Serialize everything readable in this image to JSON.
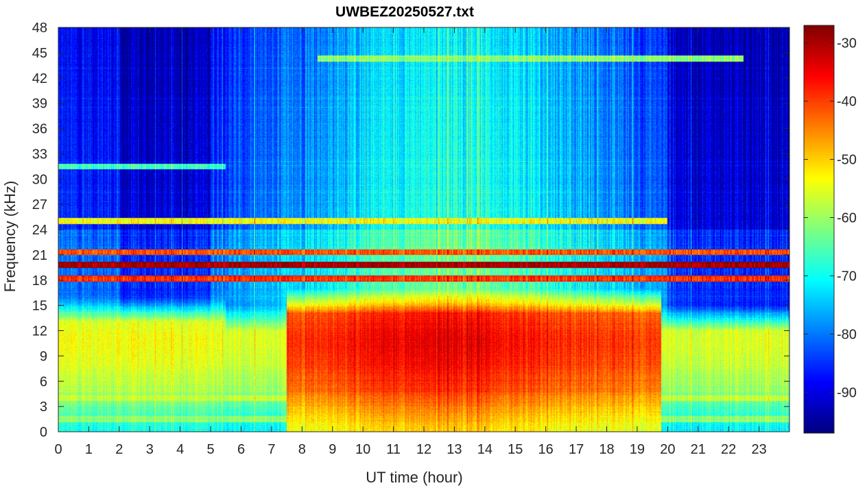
{
  "chart_data": {
    "type": "heatmap",
    "title": "UWBEZ20250527.txt",
    "xlabel": "UT time (hour)",
    "ylabel": "Frequency (kHz)",
    "xlim": [
      0,
      24
    ],
    "ylim": [
      0,
      48
    ],
    "x_ticks": [
      0,
      1,
      2,
      3,
      4,
      5,
      6,
      7,
      8,
      9,
      10,
      11,
      12,
      13,
      14,
      15,
      16,
      17,
      18,
      19,
      20,
      21,
      22,
      23
    ],
    "x_tick_labels": [
      "0",
      "1",
      "2",
      "3",
      "4",
      "5",
      "6",
      "7",
      "8",
      "9",
      "10",
      "11",
      "12",
      "13",
      "14",
      "15",
      "16",
      "17",
      "18",
      "19",
      "20",
      "21",
      "22",
      "23"
    ],
    "y_ticks": [
      0,
      3,
      6,
      9,
      12,
      15,
      18,
      21,
      24,
      27,
      30,
      33,
      36,
      39,
      42,
      45,
      48
    ],
    "y_tick_labels": [
      "0",
      "3",
      "6",
      "9",
      "12",
      "15",
      "18",
      "21",
      "24",
      "27",
      "30",
      "33",
      "36",
      "39",
      "42",
      "45",
      "48"
    ],
    "colorbar": {
      "colormap": "jet",
      "clim": [
        -97,
        -27
      ],
      "ticks": [
        -30,
        -40,
        -50,
        -60,
        -70,
        -80,
        -90
      ],
      "tick_labels": [
        "-30",
        "-40",
        "-50",
        "-60",
        "-70",
        "-80",
        "-90"
      ]
    },
    "grid": false,
    "legend": "none",
    "time_step_hours": [
      0,
      24,
      0.1
    ],
    "freq_step_khz": [
      0,
      48,
      0.5
    ],
    "narrowband_lines_khz": [
      {
        "freq": 19.8,
        "level": -30,
        "from": 0,
        "to": 24
      },
      {
        "freq": 18.2,
        "level": -40,
        "from": 0,
        "to": 24
      },
      {
        "freq": 21.3,
        "level": -42,
        "from": 0,
        "to": 24
      },
      {
        "freq": 25.0,
        "level": -55,
        "from": 0,
        "to": 20
      },
      {
        "freq": 44.3,
        "level": -62,
        "from": 8.5,
        "to": 22.5
      },
      {
        "freq": 4.0,
        "level": -58,
        "from": 0,
        "to": 24
      },
      {
        "freq": 1.5,
        "level": -62,
        "from": 0,
        "to": 24
      },
      {
        "freq": 31.5,
        "level": -68,
        "from": 0,
        "to": 5.5
      }
    ],
    "broadband_activity": [
      {
        "from_hour": 0,
        "to_hour": 5.5,
        "fmax_khz": 16,
        "level": -60
      },
      {
        "from_hour": 7.5,
        "to_hour": 19.8,
        "fmax_khz": 17,
        "level": -46
      },
      {
        "from_hour": 5.5,
        "to_hour": 7.5,
        "fmax_khz": 15,
        "level": -62
      },
      {
        "from_hour": 19.8,
        "to_hour": 24,
        "fmax_khz": 15,
        "level": -62
      }
    ]
  }
}
